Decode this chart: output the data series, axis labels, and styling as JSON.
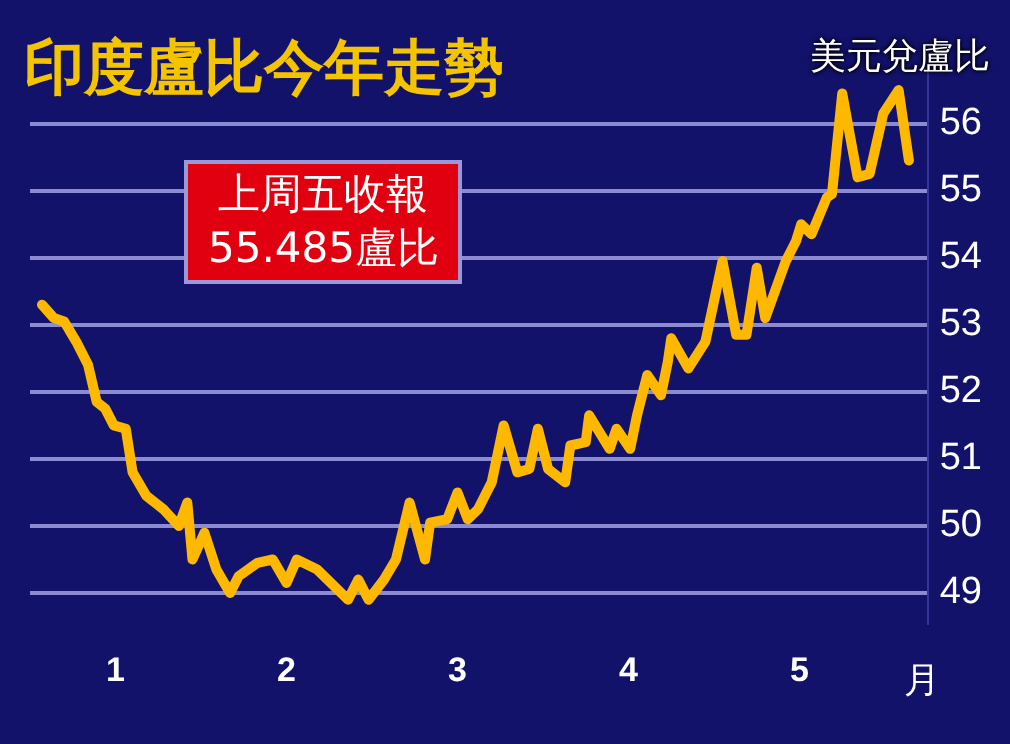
{
  "chart_data": {
    "type": "line",
    "title": "印度盧比今年走勢",
    "ylabel": "美元兌盧比",
    "xlabel": "月",
    "annotations": [
      "上周五收報\n55.485盧比"
    ],
    "x": [
      0.57,
      0.64,
      0.7,
      0.77,
      0.84,
      0.89,
      0.94,
      0.99,
      1.06,
      1.1,
      1.18,
      1.28,
      1.37,
      1.42,
      1.45,
      1.52,
      1.59,
      1.67,
      1.72,
      1.83,
      1.92,
      2.0,
      2.06,
      2.18,
      2.24,
      2.36,
      2.42,
      2.48,
      2.57,
      2.64,
      2.72,
      2.81,
      2.84,
      2.94,
      3.0,
      3.06,
      3.12,
      3.2,
      3.27,
      3.35,
      3.42,
      3.47,
      3.53,
      3.63,
      3.66,
      3.75,
      3.77,
      3.89,
      3.93,
      4.01,
      4.05,
      4.11,
      4.19,
      4.23,
      4.25,
      4.35,
      4.45,
      4.55,
      4.63,
      4.69,
      4.75,
      4.8,
      4.92,
      4.98,
      5.01,
      5.07,
      5.16,
      5.19,
      5.25,
      5.34,
      5.41,
      5.49,
      5.58,
      5.64
    ],
    "series": [
      {
        "color": "#ffb800",
        "values": [
          53.3,
          53.1,
          53.05,
          52.75,
          52.4,
          51.85,
          51.75,
          51.5,
          51.45,
          50.8,
          50.45,
          50.25,
          50.0,
          50.35,
          49.5,
          49.9,
          49.35,
          49.0,
          49.25,
          49.45,
          49.5,
          49.15,
          49.5,
          49.35,
          49.2,
          48.9,
          49.2,
          48.9,
          49.2,
          49.5,
          50.35,
          49.5,
          50.05,
          50.1,
          50.5,
          50.1,
          50.25,
          50.65,
          51.5,
          50.8,
          50.85,
          51.45,
          50.85,
          50.65,
          51.2,
          51.25,
          51.65,
          51.15,
          51.45,
          51.15,
          51.65,
          52.25,
          51.95,
          52.45,
          52.8,
          52.35,
          52.75,
          53.95,
          52.85,
          52.85,
          53.85,
          53.1,
          53.95,
          54.25,
          54.5,
          54.35,
          54.9,
          54.95,
          56.45,
          55.2,
          55.25,
          56.15,
          56.5,
          55.45
        ]
      }
    ],
    "xlim": [
      0.5,
      5.75
    ],
    "xticks": [
      1,
      2,
      3,
      4,
      5
    ],
    "ylim": [
      48.55,
      56.8
    ],
    "yticks": [
      49,
      50,
      51,
      52,
      53,
      54,
      55,
      56
    ],
    "grid": "y",
    "legend": false,
    "line_style": "solid",
    "marker": "none"
  }
}
